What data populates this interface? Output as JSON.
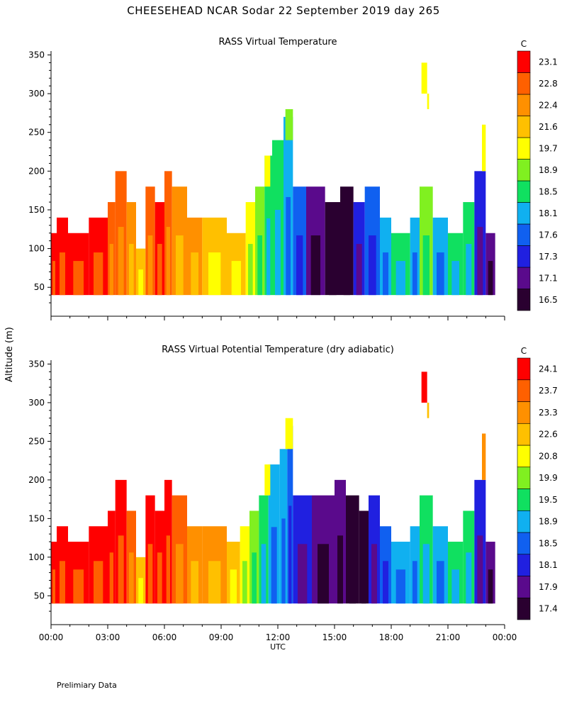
{
  "title": "CHEESEHEAD  NCAR Sodar  22 September 2019  day 265",
  "ylabel": "Altitude (m)",
  "xlabel": "UTC",
  "footer": "Prelimiary Data",
  "colorbar_unit": "C",
  "palette": [
    "#2a0030",
    "#5a0a8c",
    "#2020e0",
    "#1060f0",
    "#10b0f0",
    "#10e060",
    "#80f020",
    "#ffff00",
    "#ffc000",
    "#ff9000",
    "#ff6000",
    "#ff0000"
  ],
  "chart_data": [
    {
      "type": "heatmap",
      "title": "RASS Virtual Temperature",
      "xlabel": "UTC",
      "ylabel": "Altitude (m)",
      "x_ticks": [
        "00:00",
        "03:00",
        "06:00",
        "09:00",
        "12:00",
        "15:00",
        "18:00",
        "21:00",
        "00:00"
      ],
      "y_ticks": [
        50,
        100,
        150,
        200,
        250,
        300,
        350
      ],
      "xlim_hours": [
        0,
        24
      ],
      "ylim": [
        20,
        355
      ],
      "colorbar_levels": [
        "16.5",
        "17.1",
        "17.3",
        "17.6",
        "18.1",
        "18.5",
        "18.9",
        "19.7",
        "21.6",
        "22.4",
        "22.8",
        "23.1"
      ],
      "columns": [
        {
          "x0": 0.0,
          "x1": 0.3,
          "bottom": 40,
          "top": 120,
          "level": 11
        },
        {
          "x0": 0.3,
          "x1": 0.9,
          "bottom": 40,
          "top": 140,
          "level": 11
        },
        {
          "x0": 0.9,
          "x1": 2.0,
          "bottom": 40,
          "top": 120,
          "level": 11
        },
        {
          "x0": 2.0,
          "x1": 3.0,
          "bottom": 40,
          "top": 140,
          "level": 11
        },
        {
          "x0": 3.0,
          "x1": 3.4,
          "bottom": 40,
          "top": 160,
          "level": 10
        },
        {
          "x0": 3.4,
          "x1": 4.0,
          "bottom": 40,
          "top": 200,
          "level": 10
        },
        {
          "x0": 4.0,
          "x1": 4.5,
          "bottom": 40,
          "top": 160,
          "level": 9
        },
        {
          "x0": 4.5,
          "x1": 5.0,
          "bottom": 40,
          "top": 100,
          "level": 8
        },
        {
          "x0": 5.0,
          "x1": 5.5,
          "bottom": 40,
          "top": 180,
          "level": 10
        },
        {
          "x0": 5.5,
          "x1": 6.0,
          "bottom": 40,
          "top": 160,
          "level": 11
        },
        {
          "x0": 6.0,
          "x1": 6.4,
          "bottom": 40,
          "top": 200,
          "level": 10
        },
        {
          "x0": 6.4,
          "x1": 7.2,
          "bottom": 40,
          "top": 180,
          "level": 9
        },
        {
          "x0": 7.2,
          "x1": 8.0,
          "bottom": 40,
          "top": 140,
          "level": 9
        },
        {
          "x0": 8.0,
          "x1": 9.3,
          "bottom": 40,
          "top": 140,
          "level": 8
        },
        {
          "x0": 9.3,
          "x1": 10.3,
          "bottom": 40,
          "top": 120,
          "level": 8
        },
        {
          "x0": 10.3,
          "x1": 10.8,
          "bottom": 40,
          "top": 160,
          "level": 7
        },
        {
          "x0": 10.8,
          "x1": 11.3,
          "bottom": 40,
          "top": 180,
          "level": 6
        },
        {
          "x0": 11.3,
          "x1": 11.7,
          "bottom": 40,
          "top": 220,
          "level": 5
        },
        {
          "x0": 11.7,
          "x1": 12.3,
          "bottom": 40,
          "top": 240,
          "level": 5
        },
        {
          "x0": 12.3,
          "x1": 12.8,
          "bottom": 40,
          "top": 270,
          "level": 4
        },
        {
          "x0": 12.8,
          "x1": 13.5,
          "bottom": 40,
          "top": 180,
          "level": 3
        },
        {
          "x0": 13.5,
          "x1": 14.5,
          "bottom": 40,
          "top": 180,
          "level": 1
        },
        {
          "x0": 14.5,
          "x1": 15.3,
          "bottom": 40,
          "top": 160,
          "level": 0
        },
        {
          "x0": 15.3,
          "x1": 16.0,
          "bottom": 40,
          "top": 180,
          "level": 0
        },
        {
          "x0": 16.0,
          "x1": 16.6,
          "bottom": 40,
          "top": 160,
          "level": 2
        },
        {
          "x0": 16.6,
          "x1": 17.4,
          "bottom": 40,
          "top": 180,
          "level": 3
        },
        {
          "x0": 17.4,
          "x1": 18.0,
          "bottom": 40,
          "top": 140,
          "level": 4
        },
        {
          "x0": 18.0,
          "x1": 19.0,
          "bottom": 40,
          "top": 120,
          "level": 5
        },
        {
          "x0": 19.0,
          "x1": 19.5,
          "bottom": 40,
          "top": 140,
          "level": 4
        },
        {
          "x0": 19.5,
          "x1": 20.2,
          "bottom": 40,
          "top": 180,
          "level": 6
        },
        {
          "x0": 20.2,
          "x1": 21.0,
          "bottom": 40,
          "top": 140,
          "level": 4
        },
        {
          "x0": 21.0,
          "x1": 21.8,
          "bottom": 40,
          "top": 120,
          "level": 5
        },
        {
          "x0": 21.8,
          "x1": 22.4,
          "bottom": 40,
          "top": 160,
          "level": 5
        },
        {
          "x0": 22.4,
          "x1": 23.0,
          "bottom": 40,
          "top": 200,
          "level": 2
        },
        {
          "x0": 23.0,
          "x1": 23.5,
          "bottom": 40,
          "top": 120,
          "level": 1
        }
      ],
      "patches": [
        {
          "x0": 19.6,
          "x1": 19.9,
          "bottom": 300,
          "top": 340,
          "level": 7
        },
        {
          "x0": 19.9,
          "x1": 20.0,
          "bottom": 280,
          "top": 300,
          "level": 7
        },
        {
          "x0": 22.8,
          "x1": 23.0,
          "bottom": 200,
          "top": 260,
          "level": 7
        },
        {
          "x0": 11.3,
          "x1": 11.6,
          "bottom": 180,
          "top": 220,
          "level": 7
        },
        {
          "x0": 12.4,
          "x1": 12.8,
          "bottom": 240,
          "top": 280,
          "level": 6
        }
      ]
    },
    {
      "type": "heatmap",
      "title": "RASS Virtual Potential Temperature (dry adiabatic)",
      "xlabel": "UTC",
      "ylabel": "Altitude (m)",
      "x_ticks": [
        "00:00",
        "03:00",
        "06:00",
        "09:00",
        "12:00",
        "15:00",
        "18:00",
        "21:00",
        "00:00"
      ],
      "y_ticks": [
        50,
        100,
        150,
        200,
        250,
        300,
        350
      ],
      "xlim_hours": [
        0,
        24
      ],
      "ylim": [
        20,
        355
      ],
      "colorbar_levels": [
        "17.4",
        "17.9",
        "18.1",
        "18.5",
        "18.9",
        "19.5",
        "19.9",
        "20.8",
        "22.6",
        "23.3",
        "23.7",
        "24.1"
      ],
      "columns": [
        {
          "x0": 0.0,
          "x1": 0.3,
          "bottom": 40,
          "top": 120,
          "level": 11
        },
        {
          "x0": 0.3,
          "x1": 0.9,
          "bottom": 40,
          "top": 140,
          "level": 11
        },
        {
          "x0": 0.9,
          "x1": 2.0,
          "bottom": 40,
          "top": 120,
          "level": 11
        },
        {
          "x0": 2.0,
          "x1": 3.0,
          "bottom": 40,
          "top": 140,
          "level": 11
        },
        {
          "x0": 3.0,
          "x1": 3.4,
          "bottom": 40,
          "top": 160,
          "level": 11
        },
        {
          "x0": 3.4,
          "x1": 4.0,
          "bottom": 40,
          "top": 200,
          "level": 11
        },
        {
          "x0": 4.0,
          "x1": 4.5,
          "bottom": 40,
          "top": 160,
          "level": 10
        },
        {
          "x0": 4.5,
          "x1": 5.0,
          "bottom": 40,
          "top": 100,
          "level": 8
        },
        {
          "x0": 5.0,
          "x1": 5.5,
          "bottom": 40,
          "top": 180,
          "level": 11
        },
        {
          "x0": 5.5,
          "x1": 6.0,
          "bottom": 40,
          "top": 160,
          "level": 11
        },
        {
          "x0": 6.0,
          "x1": 6.4,
          "bottom": 40,
          "top": 200,
          "level": 11
        },
        {
          "x0": 6.4,
          "x1": 7.2,
          "bottom": 40,
          "top": 180,
          "level": 10
        },
        {
          "x0": 7.2,
          "x1": 8.0,
          "bottom": 40,
          "top": 140,
          "level": 9
        },
        {
          "x0": 8.0,
          "x1": 9.3,
          "bottom": 40,
          "top": 140,
          "level": 9
        },
        {
          "x0": 9.3,
          "x1": 10.0,
          "bottom": 40,
          "top": 120,
          "level": 8
        },
        {
          "x0": 10.0,
          "x1": 10.5,
          "bottom": 40,
          "top": 140,
          "level": 7
        },
        {
          "x0": 10.5,
          "x1": 11.0,
          "bottom": 40,
          "top": 160,
          "level": 6
        },
        {
          "x0": 11.0,
          "x1": 11.5,
          "bottom": 40,
          "top": 180,
          "level": 5
        },
        {
          "x0": 11.5,
          "x1": 12.1,
          "bottom": 40,
          "top": 220,
          "level": 4
        },
        {
          "x0": 12.1,
          "x1": 12.5,
          "bottom": 40,
          "top": 240,
          "level": 4
        },
        {
          "x0": 12.5,
          "x1": 12.8,
          "bottom": 40,
          "top": 270,
          "level": 3
        },
        {
          "x0": 12.8,
          "x1": 13.8,
          "bottom": 40,
          "top": 180,
          "level": 2
        },
        {
          "x0": 13.8,
          "x1": 15.0,
          "bottom": 40,
          "top": 180,
          "level": 1
        },
        {
          "x0": 15.0,
          "x1": 15.6,
          "bottom": 40,
          "top": 200,
          "level": 1
        },
        {
          "x0": 15.6,
          "x1": 16.3,
          "bottom": 40,
          "top": 180,
          "level": 0
        },
        {
          "x0": 16.3,
          "x1": 16.8,
          "bottom": 40,
          "top": 160,
          "level": 0
        },
        {
          "x0": 16.8,
          "x1": 17.4,
          "bottom": 40,
          "top": 180,
          "level": 2
        },
        {
          "x0": 17.4,
          "x1": 18.0,
          "bottom": 40,
          "top": 140,
          "level": 3
        },
        {
          "x0": 18.0,
          "x1": 19.0,
          "bottom": 40,
          "top": 120,
          "level": 4
        },
        {
          "x0": 19.0,
          "x1": 19.5,
          "bottom": 40,
          "top": 140,
          "level": 4
        },
        {
          "x0": 19.5,
          "x1": 20.2,
          "bottom": 40,
          "top": 180,
          "level": 5
        },
        {
          "x0": 20.2,
          "x1": 21.0,
          "bottom": 40,
          "top": 140,
          "level": 4
        },
        {
          "x0": 21.0,
          "x1": 21.8,
          "bottom": 40,
          "top": 120,
          "level": 5
        },
        {
          "x0": 21.8,
          "x1": 22.4,
          "bottom": 40,
          "top": 160,
          "level": 5
        },
        {
          "x0": 22.4,
          "x1": 23.0,
          "bottom": 40,
          "top": 200,
          "level": 2
        },
        {
          "x0": 23.0,
          "x1": 23.5,
          "bottom": 40,
          "top": 120,
          "level": 1
        }
      ],
      "patches": [
        {
          "x0": 19.6,
          "x1": 19.9,
          "bottom": 300,
          "top": 340,
          "level": 11
        },
        {
          "x0": 19.9,
          "x1": 20.0,
          "bottom": 280,
          "top": 300,
          "level": 8
        },
        {
          "x0": 22.8,
          "x1": 23.0,
          "bottom": 200,
          "top": 260,
          "level": 9
        },
        {
          "x0": 11.3,
          "x1": 11.6,
          "bottom": 180,
          "top": 220,
          "level": 7
        },
        {
          "x0": 12.4,
          "x1": 12.8,
          "bottom": 240,
          "top": 280,
          "level": 7
        }
      ]
    }
  ]
}
